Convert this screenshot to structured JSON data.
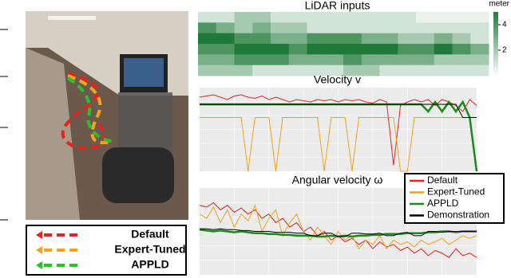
{
  "chart_data": [
    {
      "type": "heatmap",
      "title": "LiDAR inputs",
      "colorbar_label": "meter",
      "color": "#1f7a3a",
      "zlim": [
        0,
        5
      ],
      "zticks": [
        2,
        4
      ],
      "values": [
        [
          1,
          1,
          2,
          2,
          1,
          1,
          1,
          1,
          1,
          1,
          1,
          1,
          0.5,
          0.5,
          0.5,
          0.5
        ],
        [
          4,
          3,
          2,
          3,
          2,
          2,
          1,
          1,
          1,
          1,
          1,
          1,
          1,
          1,
          1,
          1
        ],
        [
          5,
          5,
          4,
          4,
          3,
          3,
          4,
          4,
          4,
          3,
          3,
          2,
          2,
          3,
          2,
          1
        ],
        [
          4,
          4,
          5,
          5,
          5,
          4,
          5,
          5,
          5,
          5,
          5,
          4,
          4,
          5,
          4,
          3
        ],
        [
          3,
          3,
          4,
          4,
          4,
          3,
          3,
          3,
          4,
          3,
          3,
          3,
          3,
          2,
          2,
          2
        ],
        [
          2,
          2,
          2,
          1,
          1,
          1,
          1,
          1,
          2,
          2,
          1,
          1,
          1,
          1,
          1,
          1
        ]
      ]
    },
    {
      "type": "line",
      "title": "Velocity v",
      "ylim": [
        0,
        0.7
      ],
      "xlim": [
        0,
        40
      ],
      "x": [
        0,
        1,
        2,
        3,
        4,
        5,
        6,
        7,
        8,
        9,
        10,
        11,
        12,
        13,
        14,
        15,
        16,
        17,
        18,
        19,
        20,
        21,
        22,
        23,
        24,
        25,
        26,
        27,
        28,
        29,
        30,
        31,
        32,
        33,
        34,
        35,
        36,
        37,
        38,
        39,
        40
      ],
      "series": [
        {
          "name": "Default",
          "color": "#e8231f",
          "values": [
            0.62,
            0.63,
            0.64,
            0.62,
            0.6,
            0.63,
            0.64,
            0.62,
            0.61,
            0.63,
            0.6,
            0.62,
            0.6,
            0.58,
            0.6,
            0.59,
            0.58,
            0.6,
            0.59,
            0.6,
            0.58,
            0.6,
            0.59,
            0.6,
            0.58,
            0.57,
            0.6,
            0.58,
            0.05,
            0.55,
            0.58,
            0.6,
            0.58,
            0.6,
            0.55,
            0.6,
            0.58,
            0.55,
            0.5,
            0.6,
            0.55
          ]
        },
        {
          "name": "Expert-Tuned",
          "color": "#f7a21b",
          "values": [
            0.45,
            0.45,
            0.45,
            0.45,
            0.45,
            0.45,
            0.45,
            0,
            0.45,
            0.45,
            0.45,
            0,
            0.45,
            0.45,
            0.45,
            0.45,
            0.45,
            0.45,
            0,
            0.45,
            0.45,
            0.45,
            0,
            0.45,
            0.45,
            0.45,
            0.45,
            0.45,
            0.45,
            0,
            0,
            0.45,
            0.45,
            0.45,
            0.45,
            0.45,
            0.45,
            0.45,
            0.45,
            0.45,
            0.45
          ]
        },
        {
          "name": "APPLD",
          "color": "#1a8a1a",
          "values": [
            0.56,
            0.56,
            0.56,
            0.56,
            0.56,
            0.56,
            0.56,
            0.56,
            0.56,
            0.56,
            0.56,
            0.56,
            0.56,
            0.56,
            0.56,
            0.56,
            0.56,
            0.56,
            0.56,
            0.56,
            0.56,
            0.56,
            0.56,
            0.56,
            0.56,
            0.56,
            0.56,
            0.56,
            0.56,
            0.56,
            0.56,
            0.56,
            0.56,
            0.5,
            0.58,
            0.5,
            0.58,
            0.5,
            0.58,
            0.45,
            0.0
          ]
        },
        {
          "name": "Demonstration",
          "color": "#000000",
          "values": [
            0.56,
            0.56,
            0.56,
            0.56,
            0.56,
            0.56,
            0.56,
            0.56,
            0.56,
            0.56,
            0.56,
            0.56,
            0.56,
            0.56,
            0.56,
            0.56,
            0.56,
            0.56,
            0.56,
            0.56,
            0.56,
            0.56,
            0.56,
            0.56,
            0.56,
            0.56,
            0.56,
            0.56,
            0.56,
            0.56,
            0.56,
            0.56,
            0.56,
            0.56,
            0.56,
            0.56,
            0.56,
            0.56,
            0.45,
            0.45,
            0.45
          ]
        }
      ]
    },
    {
      "type": "line",
      "title": "Angular velocity ω",
      "ylim": [
        -0.5,
        0.5
      ],
      "xlim": [
        0,
        40
      ],
      "legend": "upper right",
      "x": [
        0,
        1,
        2,
        3,
        4,
        5,
        6,
        7,
        8,
        9,
        10,
        11,
        12,
        13,
        14,
        15,
        16,
        17,
        18,
        19,
        20,
        21,
        22,
        23,
        24,
        25,
        26,
        27,
        28,
        29,
        30,
        31,
        32,
        33,
        34,
        35,
        36,
        37,
        38,
        39,
        40
      ],
      "series": [
        {
          "name": "Default",
          "color": "#e8231f",
          "values": [
            0.3,
            0.28,
            0.33,
            0.25,
            0.3,
            0.22,
            0.27,
            0.2,
            0.25,
            0.15,
            0.2,
            0.1,
            0.15,
            0.05,
            0.1,
            0.0,
            0.05,
            -0.05,
            0.0,
            -0.1,
            -0.05,
            -0.12,
            -0.08,
            -0.15,
            -0.1,
            -0.2,
            -0.12,
            -0.18,
            -0.15,
            -0.22,
            -0.18,
            -0.25,
            -0.2,
            -0.28,
            -0.22,
            -0.25,
            -0.3,
            -0.2,
            -0.28,
            -0.25,
            -0.3
          ]
        },
        {
          "name": "Expert-Tuned",
          "color": "#f7a21b",
          "values": [
            0.2,
            0.15,
            0.28,
            0.1,
            0.25,
            0.05,
            0.2,
            0.12,
            0.3,
            0.0,
            0.15,
            0.25,
            -0.05,
            0.1,
            0.2,
            0.0,
            -0.1,
            0.05,
            -0.05,
            -0.15,
            0.0,
            -0.1,
            -0.05,
            -0.2,
            -0.1,
            -0.15,
            -0.05,
            -0.2,
            -0.1,
            -0.15,
            -0.12,
            -0.18,
            -0.1,
            -0.15,
            -0.12,
            -0.08,
            -0.15,
            -0.1,
            -0.05,
            -0.08,
            -0.05
          ]
        },
        {
          "name": "APPLD",
          "color": "#1a8a1a",
          "values": [
            0.02,
            0.01,
            0.0,
            0.01,
            0.0,
            -0.01,
            0.0,
            -0.01,
            -0.02,
            -0.02,
            -0.03,
            -0.03,
            -0.04,
            -0.04,
            -0.05,
            -0.05,
            -0.05,
            -0.06,
            -0.06,
            -0.05,
            -0.06,
            -0.05,
            -0.06,
            -0.05,
            -0.05,
            -0.04,
            -0.04,
            -0.03,
            -0.03,
            -0.03,
            -0.02,
            -0.02,
            -0.02,
            -0.01,
            -0.01,
            0.0,
            0.0,
            -0.01,
            0.0,
            0.0,
            0.0
          ]
        },
        {
          "name": "Demonstration",
          "color": "#000000",
          "values": [
            0.03,
            0.03,
            0.02,
            0.03,
            0.02,
            0.02,
            0.01,
            0.01,
            0.0,
            0.0,
            0.0,
            -0.01,
            -0.01,
            -0.01,
            -0.02,
            -0.02,
            -0.05,
            -0.05,
            -0.02,
            -0.02,
            -0.06,
            -0.06,
            -0.02,
            -0.02,
            -0.03,
            -0.03,
            -0.02,
            -0.05,
            -0.05,
            -0.02,
            -0.01,
            -0.05,
            -0.05,
            0.0,
            0.0,
            -0.01,
            0.0,
            0.0,
            0.0,
            0.0,
            0.0
          ]
        }
      ]
    }
  ],
  "photo_legend": {
    "items": [
      {
        "name": "Default",
        "color": "#e8231f"
      },
      {
        "name": "Expert-Tuned",
        "color": "#f7a21b"
      },
      {
        "name": "APPLD",
        "color": "#2bbf2b"
      }
    ]
  }
}
